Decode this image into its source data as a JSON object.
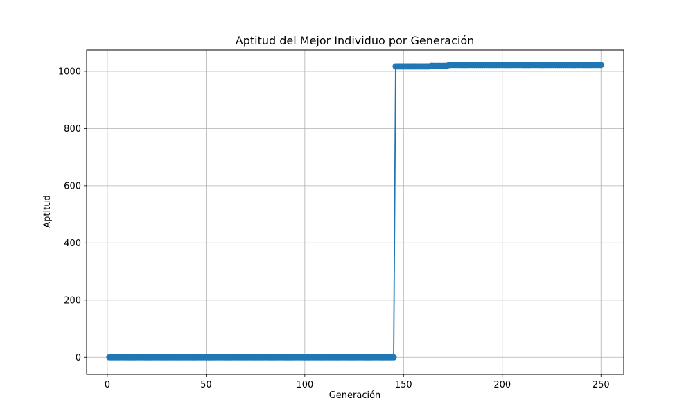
{
  "chart_data": {
    "type": "line",
    "title": "Aptitud del Mejor Individuo por Generación",
    "xlabel": "Generación",
    "ylabel": "Aptitud",
    "xlim": [
      -10.5,
      261.5
    ],
    "ylim": [
      -60,
      1075
    ],
    "xticks": [
      0,
      50,
      100,
      150,
      200,
      250
    ],
    "yticks": [
      0,
      200,
      400,
      600,
      800,
      1000
    ],
    "grid": true,
    "marker": "circle",
    "series": [
      {
        "color": "#1f77b4",
        "segments": [
          {
            "x_start": 1,
            "x_end": 145,
            "y": 0
          },
          {
            "x_start": 146,
            "x_end": 163,
            "y": 1017
          },
          {
            "x_start": 164,
            "x_end": 172,
            "y": 1019
          },
          {
            "x_start": 173,
            "x_end": 250,
            "y": 1022
          }
        ]
      }
    ]
  }
}
